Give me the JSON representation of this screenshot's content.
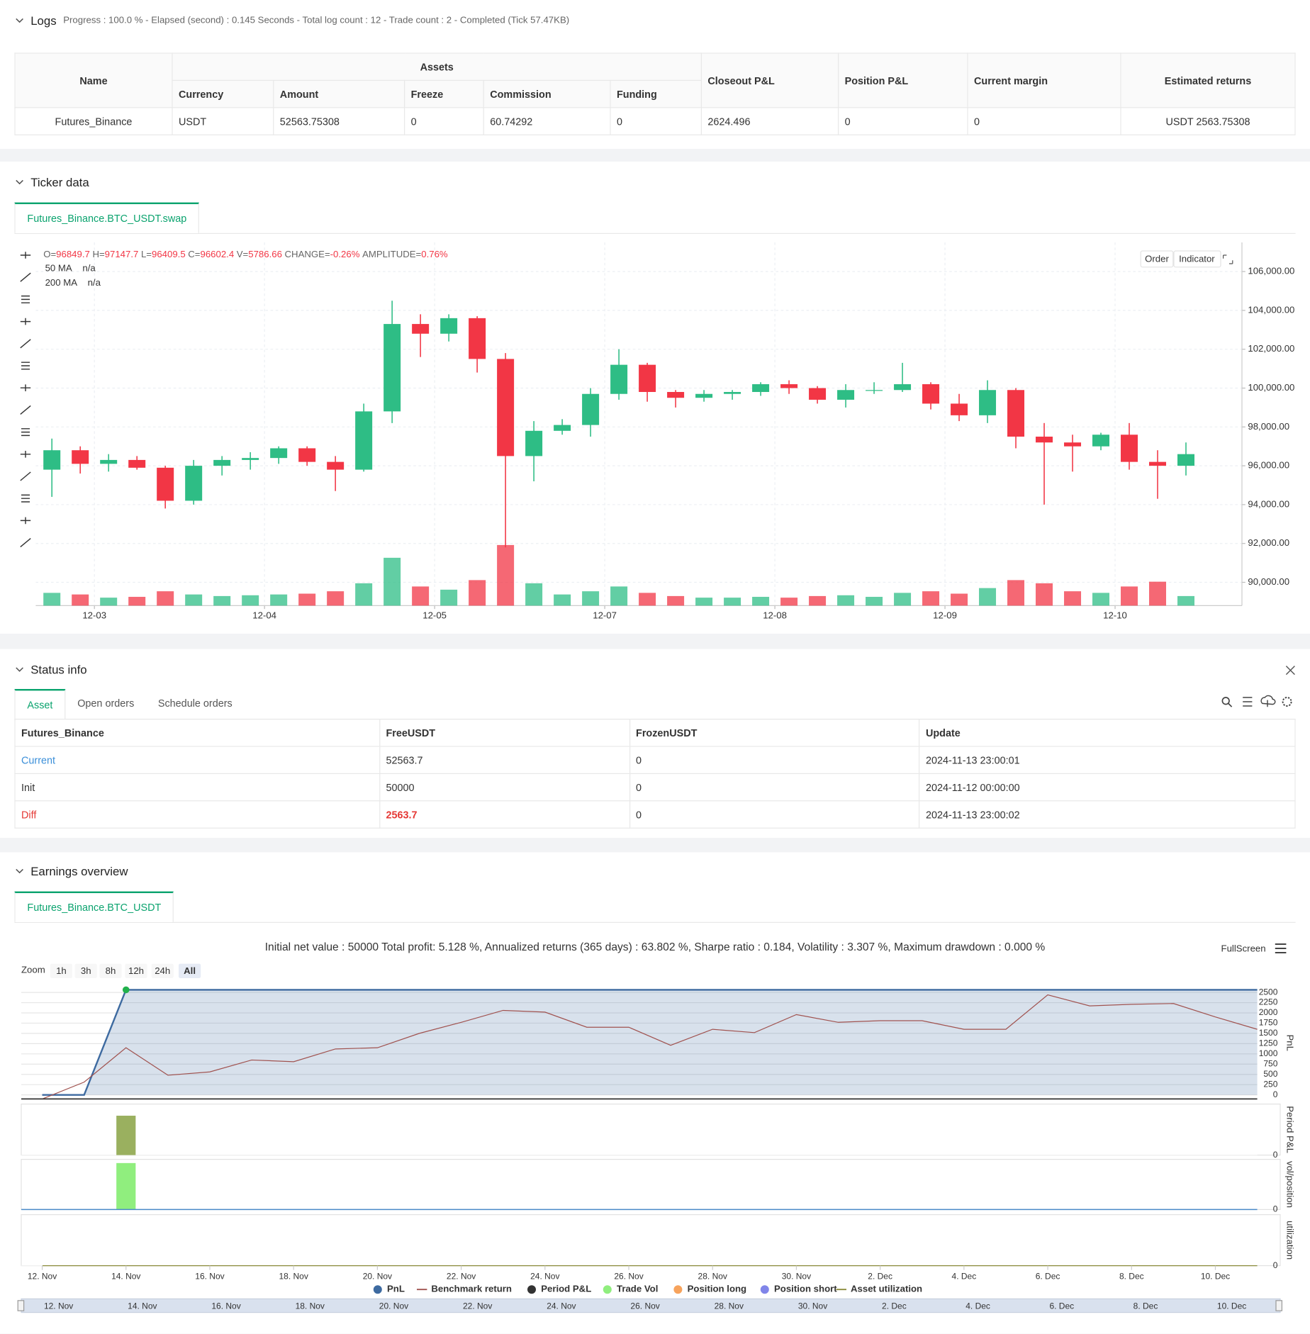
{
  "logs": {
    "title": "Logs",
    "summary": "Progress : 100.0 % - Elapsed (second) : 0.145  Seconds - Total log count : 12 - Trade count : 2 - Completed (Tick 57.47KB)",
    "table": {
      "headers": [
        "Name",
        "Assets",
        "Closeout P&L",
        "Position P&L",
        "Current margin",
        "Estimated returns"
      ],
      "subheaders": [
        "Currency",
        "Amount",
        "Freeze",
        "Commission",
        "Funding"
      ],
      "rows": [
        [
          "Futures_Binance",
          "USDT",
          "52563.75308",
          "0",
          "60.74292",
          "0",
          "2624.496",
          "0",
          "0",
          "USDT 2563.75308"
        ]
      ]
    }
  },
  "ticker": {
    "title": "Ticker data",
    "tab": "Futures_Binance.BTC_USDT.swap",
    "chart_data": {
      "type": "candlestick",
      "legend_items": [
        {
          "label": "O=",
          "value": "96849.7"
        },
        {
          "label": "H=",
          "value": "97147.7"
        },
        {
          "label": "L=",
          "value": "96409.5"
        },
        {
          "label": "C=",
          "value": "96602.4"
        },
        {
          "label": "V=",
          "value": "5786.66"
        },
        {
          "label": "CHANGE=",
          "value": "-0.26%"
        },
        {
          "label": "AMPLITUDE=",
          "value": "0.76%"
        }
      ],
      "ma": [
        {
          "name": "50 MA",
          "value": "n/a",
          "color": "#f39c12"
        },
        {
          "name": "200 MA",
          "value": "n/a",
          "color": "#9b59b6"
        }
      ],
      "buttons": [
        "Order",
        "Indicator"
      ],
      "x": [
        -6,
        -2,
        2,
        6,
        10,
        14,
        18,
        22,
        26,
        30,
        34,
        38,
        42,
        46,
        50,
        54,
        58,
        62,
        66,
        70,
        74,
        78,
        82,
        86,
        90,
        94,
        98,
        102,
        106,
        110,
        114,
        118,
        122,
        126,
        130,
        134,
        138,
        142,
        146,
        150,
        154
      ],
      "open": [
        95800,
        96800,
        96100,
        96300,
        95900,
        94200,
        96000,
        96300,
        96400,
        96900,
        96200,
        95800,
        98800,
        103300,
        102800,
        103600,
        101500,
        96500,
        97800,
        98100,
        99700,
        101200,
        99800,
        99500,
        99700,
        99800,
        100200,
        100000,
        99400,
        99900,
        99900,
        100200,
        99200,
        98600,
        99900,
        97500,
        97200,
        97000,
        97600,
        96200,
        96000
      ],
      "high": [
        97400,
        97000,
        96600,
        96500,
        96000,
        96300,
        96500,
        96700,
        97000,
        97000,
        96500,
        99200,
        104500,
        103800,
        103800,
        103700,
        101800,
        98300,
        98400,
        100000,
        102000,
        101300,
        99900,
        99900,
        99900,
        100300,
        100400,
        100100,
        100200,
        100300,
        101300,
        100300,
        99700,
        100400,
        100000,
        98200,
        97600,
        97700,
        98200,
        96800,
        97200
      ],
      "low": [
        94400,
        95600,
        95700,
        95800,
        93800,
        94000,
        95500,
        95800,
        96100,
        96000,
        94700,
        95700,
        98200,
        101600,
        102400,
        100800,
        91800,
        95200,
        97600,
        97500,
        99400,
        99300,
        99000,
        99300,
        99400,
        99600,
        99700,
        99200,
        99000,
        99700,
        99800,
        98900,
        98300,
        98200,
        96900,
        94000,
        95700,
        96800,
        95800,
        94300,
        95500
      ],
      "close": [
        96800,
        96100,
        96300,
        95900,
        94200,
        96000,
        96300,
        96400,
        96900,
        96200,
        95800,
        98800,
        103300,
        102800,
        103600,
        101500,
        96500,
        97800,
        98100,
        99700,
        101200,
        99800,
        99500,
        99700,
        99800,
        100200,
        100000,
        99400,
        99900,
        99900,
        100200,
        99200,
        98600,
        99900,
        97500,
        97200,
        97000,
        97600,
        96200,
        96000,
        96600
      ],
      "volume": [
        8000,
        7000,
        5000,
        5500,
        9000,
        7000,
        6000,
        6500,
        7000,
        7500,
        9000,
        14000,
        30000,
        12000,
        10000,
        16000,
        38000,
        14000,
        7000,
        9000,
        12000,
        8000,
        6000,
        5000,
        5000,
        5500,
        5000,
        6000,
        6500,
        5500,
        8000,
        9000,
        7500,
        11000,
        16000,
        14000,
        9000,
        8000,
        12000,
        15000,
        6000
      ],
      "up_color": "#2ebd85",
      "down_color": "#f23645",
      "xlim": [
        -8.28,
        161.9
      ],
      "xticks": [
        {
          "value": 0,
          "label": "12-03"
        },
        {
          "value": 24,
          "label": "12-04"
        },
        {
          "value": 48,
          "label": "12-05"
        },
        {
          "value": 72,
          "label": "12-07"
        },
        {
          "value": 96,
          "label": "12-08"
        },
        {
          "value": 120,
          "label": "12-09"
        },
        {
          "value": 144,
          "label": "12-10"
        }
      ],
      "ylim": [
        88800,
        107500
      ],
      "yticks": [
        {
          "value": 90000,
          "label": "90,000.00"
        },
        {
          "value": 92000,
          "label": "92,000.00"
        },
        {
          "value": 94000,
          "label": "94,000.00"
        },
        {
          "value": 96000,
          "label": "96,000.00"
        },
        {
          "value": 98000,
          "label": "98,000.00"
        },
        {
          "value": 100000,
          "label": "100,000.00"
        },
        {
          "value": 102000,
          "label": "102,000.00"
        },
        {
          "value": 104000,
          "label": "104,000.00"
        },
        {
          "value": 106000,
          "label": "106,000.00"
        }
      ],
      "volume_ylim": [
        0,
        40000
      ],
      "grid": true
    }
  },
  "status": {
    "title": "Status info",
    "tabs": [
      "Asset",
      "Open orders",
      "Schedule orders"
    ],
    "table": {
      "headers": [
        "Futures_Binance",
        "FreeUSDT",
        "FrozenUSDT",
        "Update"
      ],
      "rows": [
        [
          "Current",
          "52563.7",
          "0",
          "2024-11-13 23:00:01"
        ],
        [
          "Init",
          "50000",
          "0",
          "2024-11-12 00:00:00"
        ],
        [
          "Diff",
          "2563.7",
          "0",
          "2024-11-13 23:00:02"
        ]
      ]
    }
  },
  "earnings": {
    "title": "Earnings overview",
    "tab": "Futures_Binance.BTC_USDT",
    "summary": "Initial net value : 50000 Total profit: 5.128 %, Annualized returns (365 days) : 63.802 %, Sharpe ratio : 0.184, Volatility : 3.307 %, Maximum drawdown : 0.000 %",
    "zoom_label": "Zoom",
    "zoom_buttons": [
      "1h",
      "3h",
      "8h",
      "12h",
      "24h",
      "All"
    ],
    "fullscreen": "FullScreen",
    "legend": [
      {
        "name": "PnL",
        "color": "#3d6aa0",
        "marker": "circle"
      },
      {
        "name": "Benchmark return",
        "color": "#a0524f",
        "marker": "line"
      },
      {
        "name": "Period P&L",
        "color": "#333333",
        "marker": "circle"
      },
      {
        "name": "Trade Vol",
        "color": "#90ee7e",
        "marker": "circle"
      },
      {
        "name": "Position long",
        "color": "#f7a35c",
        "marker": "circle"
      },
      {
        "name": "Position short",
        "color": "#8085e9",
        "marker": "circle"
      },
      {
        "name": "Asset utilization",
        "color": "#8b8b3a",
        "marker": "line"
      }
    ],
    "chart_data": [
      {
        "type": "area",
        "y_label": "PnL",
        "x": [
          0,
          1,
          2,
          3,
          4,
          5,
          6,
          7,
          8,
          9,
          10,
          11,
          12,
          13,
          14,
          15,
          16,
          17,
          18,
          19,
          20,
          21,
          22,
          23,
          24,
          25,
          26,
          27,
          28,
          29
        ],
        "xlim": [
          -0.5,
          29
        ],
        "xticks": [
          {
            "value": 0,
            "label": "12. Nov"
          },
          {
            "value": 2,
            "label": "14. Nov"
          },
          {
            "value": 4,
            "label": "16. Nov"
          },
          {
            "value": 6,
            "label": "18. Nov"
          },
          {
            "value": 8,
            "label": "20. Nov"
          },
          {
            "value": 10,
            "label": "22. Nov"
          },
          {
            "value": 12,
            "label": "24. Nov"
          },
          {
            "value": 14,
            "label": "26. Nov"
          },
          {
            "value": 16,
            "label": "28. Nov"
          },
          {
            "value": 18,
            "label": "30. Nov"
          },
          {
            "value": 20,
            "label": "2. Dec"
          },
          {
            "value": 22,
            "label": "4. Dec"
          },
          {
            "value": 24,
            "label": "6. Dec"
          },
          {
            "value": 26,
            "label": "8. Dec"
          },
          {
            "value": 28,
            "label": "10. Dec"
          }
        ],
        "ylim": [
          -100,
          2640
        ],
        "yticks": [
          0,
          250,
          500,
          750,
          1000,
          1250,
          1500,
          1750,
          2000,
          2250,
          2500
        ],
        "series": [
          {
            "color": "#3d6aa0",
            "x": [
              0,
              1,
              2,
              29
            ],
            "values": [
              0,
              0,
              2563.75308,
              2563.75308
            ]
          },
          {
            "color": "#a0524f",
            "values": [
              -100,
              310,
              1150,
              480,
              560,
              850,
              810,
              1120,
              1150,
              1500,
              1770,
              2060,
              2020,
              1650,
              1650,
              1210,
              1600,
              1520,
              1960,
              1770,
              1810,
              1810,
              1600,
              1600,
              2440,
              2170,
              2210,
              2230,
              1900,
              1600
            ]
          }
        ]
      },
      {
        "type": "bar",
        "y_label": "Period P&L",
        "ylim": [
          0,
          3400
        ],
        "yticks": [
          0
        ],
        "series": [
          {
            "color": "#9ab05f",
            "x": [
              2
            ],
            "values": [
              2624.496
            ]
          }
        ]
      },
      {
        "type": "bar",
        "y_label": "vol/position",
        "ylim": [
          0,
          1.08
        ],
        "yticks": [
          0
        ],
        "series": [
          {
            "color": "#90ee7e",
            "x": [
              2
            ],
            "values": [
              1
            ]
          }
        ]
      },
      {
        "type": "line",
        "y_label": "utilization",
        "ylim": [
          0,
          1
        ],
        "yticks": [
          0
        ],
        "series": []
      }
    ]
  }
}
